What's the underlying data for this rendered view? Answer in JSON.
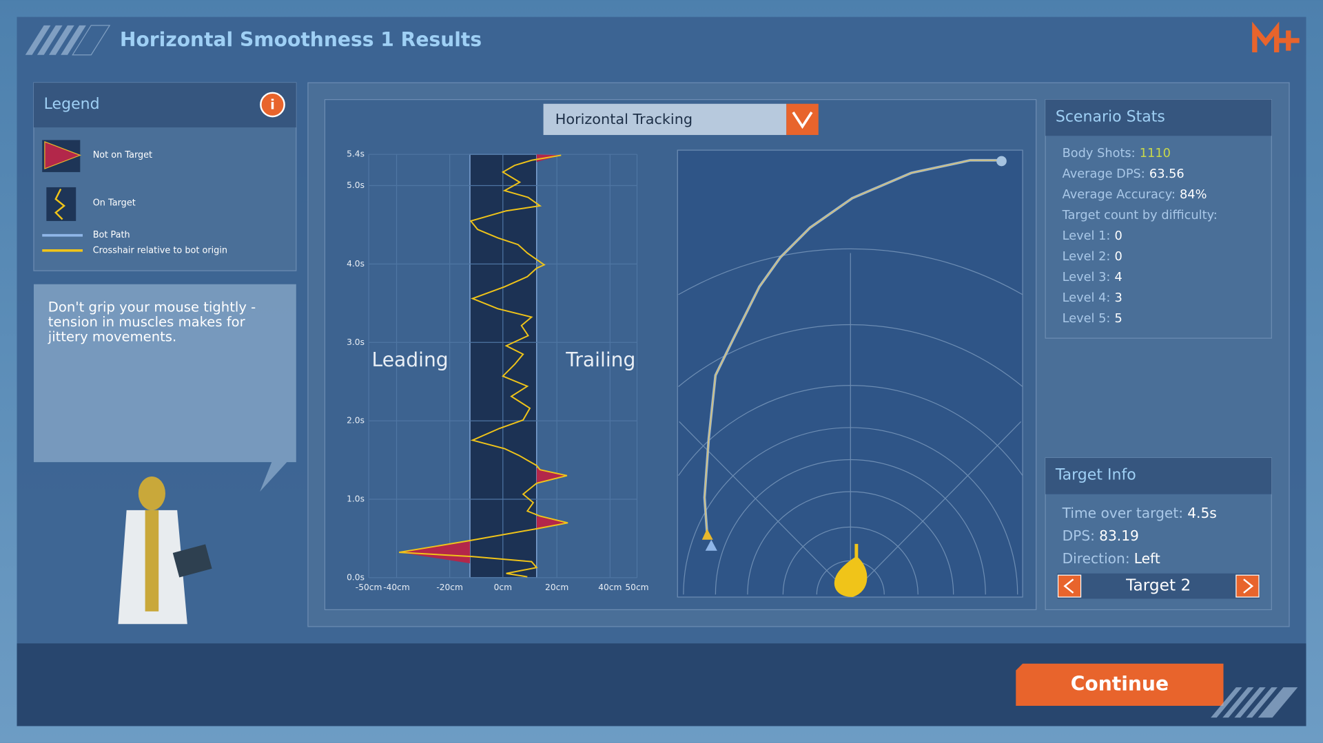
{
  "header": {
    "title": "Horizontal Smoothness 1 Results"
  },
  "legend": {
    "title": "Legend",
    "items": [
      "Not on Target",
      "On Target",
      "Bot Path",
      "Crosshair relative to bot origin"
    ]
  },
  "tip": [
    "Don't grip your mouse tightly -",
    "tension in muscles makes for",
    "jittery movements."
  ],
  "graph": {
    "dropdown": "Horizontal Tracking",
    "left_label": "Leading",
    "right_label": "Trailing",
    "yticks": [
      "5.4s",
      "5.0s",
      "4.0s",
      "3.0s",
      "2.0s",
      "1.0s",
      "0.0s"
    ],
    "xticks": [
      "-50cm",
      "-40cm",
      "-20cm",
      "0cm",
      "20cm",
      "40cm",
      "50cm"
    ]
  },
  "scenario_stats": {
    "title": "Scenario Stats",
    "rows": [
      {
        "label": "Body Shots:",
        "value": 1110
      },
      {
        "label": "Average DPS:",
        "value": 63.56
      },
      {
        "label": "Average Accuracy:",
        "value": "84%"
      }
    ],
    "difficulty_title": "Target count by difficulty:",
    "levels": [
      {
        "label": "Level 1:",
        "value": 0
      },
      {
        "label": "Level 2:",
        "value": 0
      },
      {
        "label": "Level 3:",
        "value": 4
      },
      {
        "label": "Level 4:",
        "value": 3
      },
      {
        "label": "Level 5:",
        "value": 5
      }
    ]
  },
  "target_info": {
    "title": "Target Info",
    "rows": [
      {
        "label": "Time over target:",
        "value": "4.5s"
      },
      {
        "label": "DPS:",
        "value": 83.19
      },
      {
        "label": "Direction:",
        "value": "Left"
      }
    ],
    "target": "Target 2"
  },
  "continue": "Continue"
}
